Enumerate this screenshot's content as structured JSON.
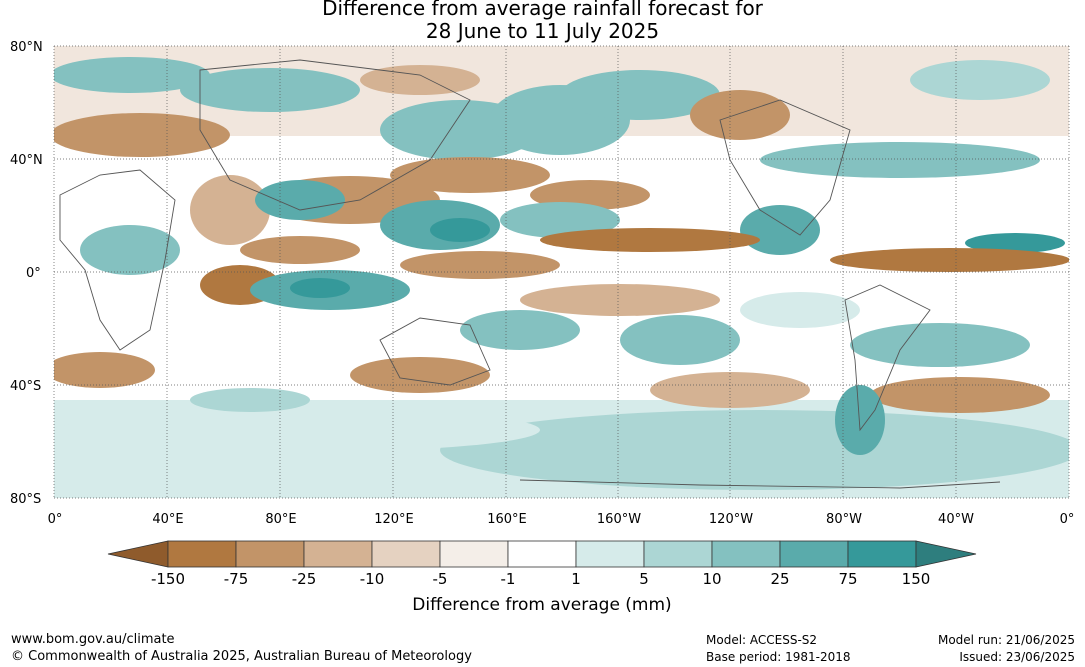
{
  "title": {
    "line1": "Difference from average rainfall forecast for",
    "line2": "28 June to 11 July 2025"
  },
  "map": {
    "lat_labels": [
      "80°N",
      "40°N",
      "0°",
      "40°S",
      "80°S"
    ],
    "lon_labels": [
      "0°",
      "40°E",
      "80°E",
      "120°E",
      "160°E",
      "160°W",
      "120°W",
      "80°W",
      "40°W",
      "0°"
    ],
    "grid": true
  },
  "legend": {
    "title": "Difference from average (mm)",
    "ticks": [
      "-150",
      "-75",
      "-25",
      "-10",
      "-5",
      "-1",
      "1",
      "5",
      "10",
      "25",
      "75",
      "150"
    ],
    "colors": [
      "#8f5b2c",
      "#b07840",
      "#c29468",
      "#d4b293",
      "#e5d2c1",
      "#f4eee8",
      "#ffffff",
      "#d6ebea",
      "#acd6d4",
      "#84c1c0",
      "#5aabab",
      "#35999a",
      "#2e7e7e"
    ]
  },
  "footer": {
    "left_line1": "www.bom.gov.au/climate",
    "left_line2": "© Commonwealth of Australia 2025, Australian Bureau of Meteorology",
    "model": "Model: ACCESS-S2",
    "base_period": "Base period: 1981-2018",
    "model_run": "Model run: 21/06/2025",
    "issued": "Issued: 23/06/2025"
  }
}
